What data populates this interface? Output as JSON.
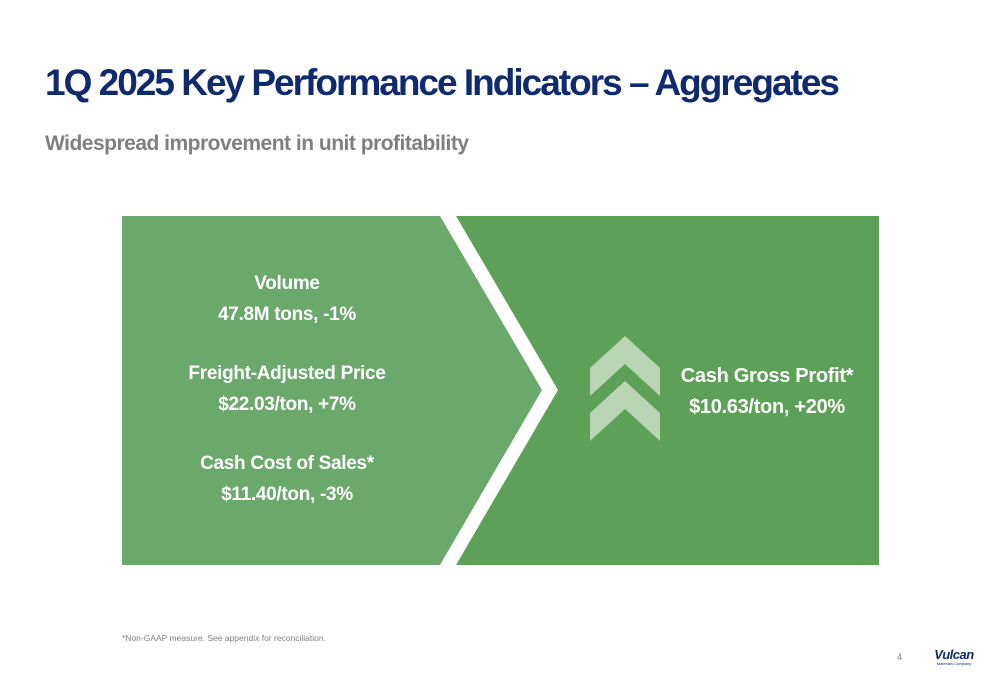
{
  "slide": {
    "title": "1Q 2025 Key Performance Indicators – Aggregates",
    "subtitle": "Widespread improvement in unit profitability",
    "footnote": "*Non-GAAP measure. See appendix for reconciliation.",
    "page_number": "4"
  },
  "kpis": [
    {
      "label": "Volume",
      "value": "47.8M tons, -1%"
    },
    {
      "label": "Freight-Adjusted Price",
      "value": "$22.03/ton, +7%"
    },
    {
      "label": "Cash Cost of Sales*",
      "value": "$11.40/ton, -3%"
    }
  ],
  "result": {
    "label": "Cash Gross Profit*",
    "value": "$10.63/ton, +20%",
    "icon": "double-chevron-up-icon"
  },
  "logo": {
    "name": "Vulcan",
    "tagline": "Materials Company"
  },
  "colors": {
    "title": "#0f2a6e",
    "subtitle": "#7f7f7f",
    "left_panel": "#6aa86b",
    "right_panel": "#5da057",
    "chevron_icon": "#b9d6b4"
  }
}
